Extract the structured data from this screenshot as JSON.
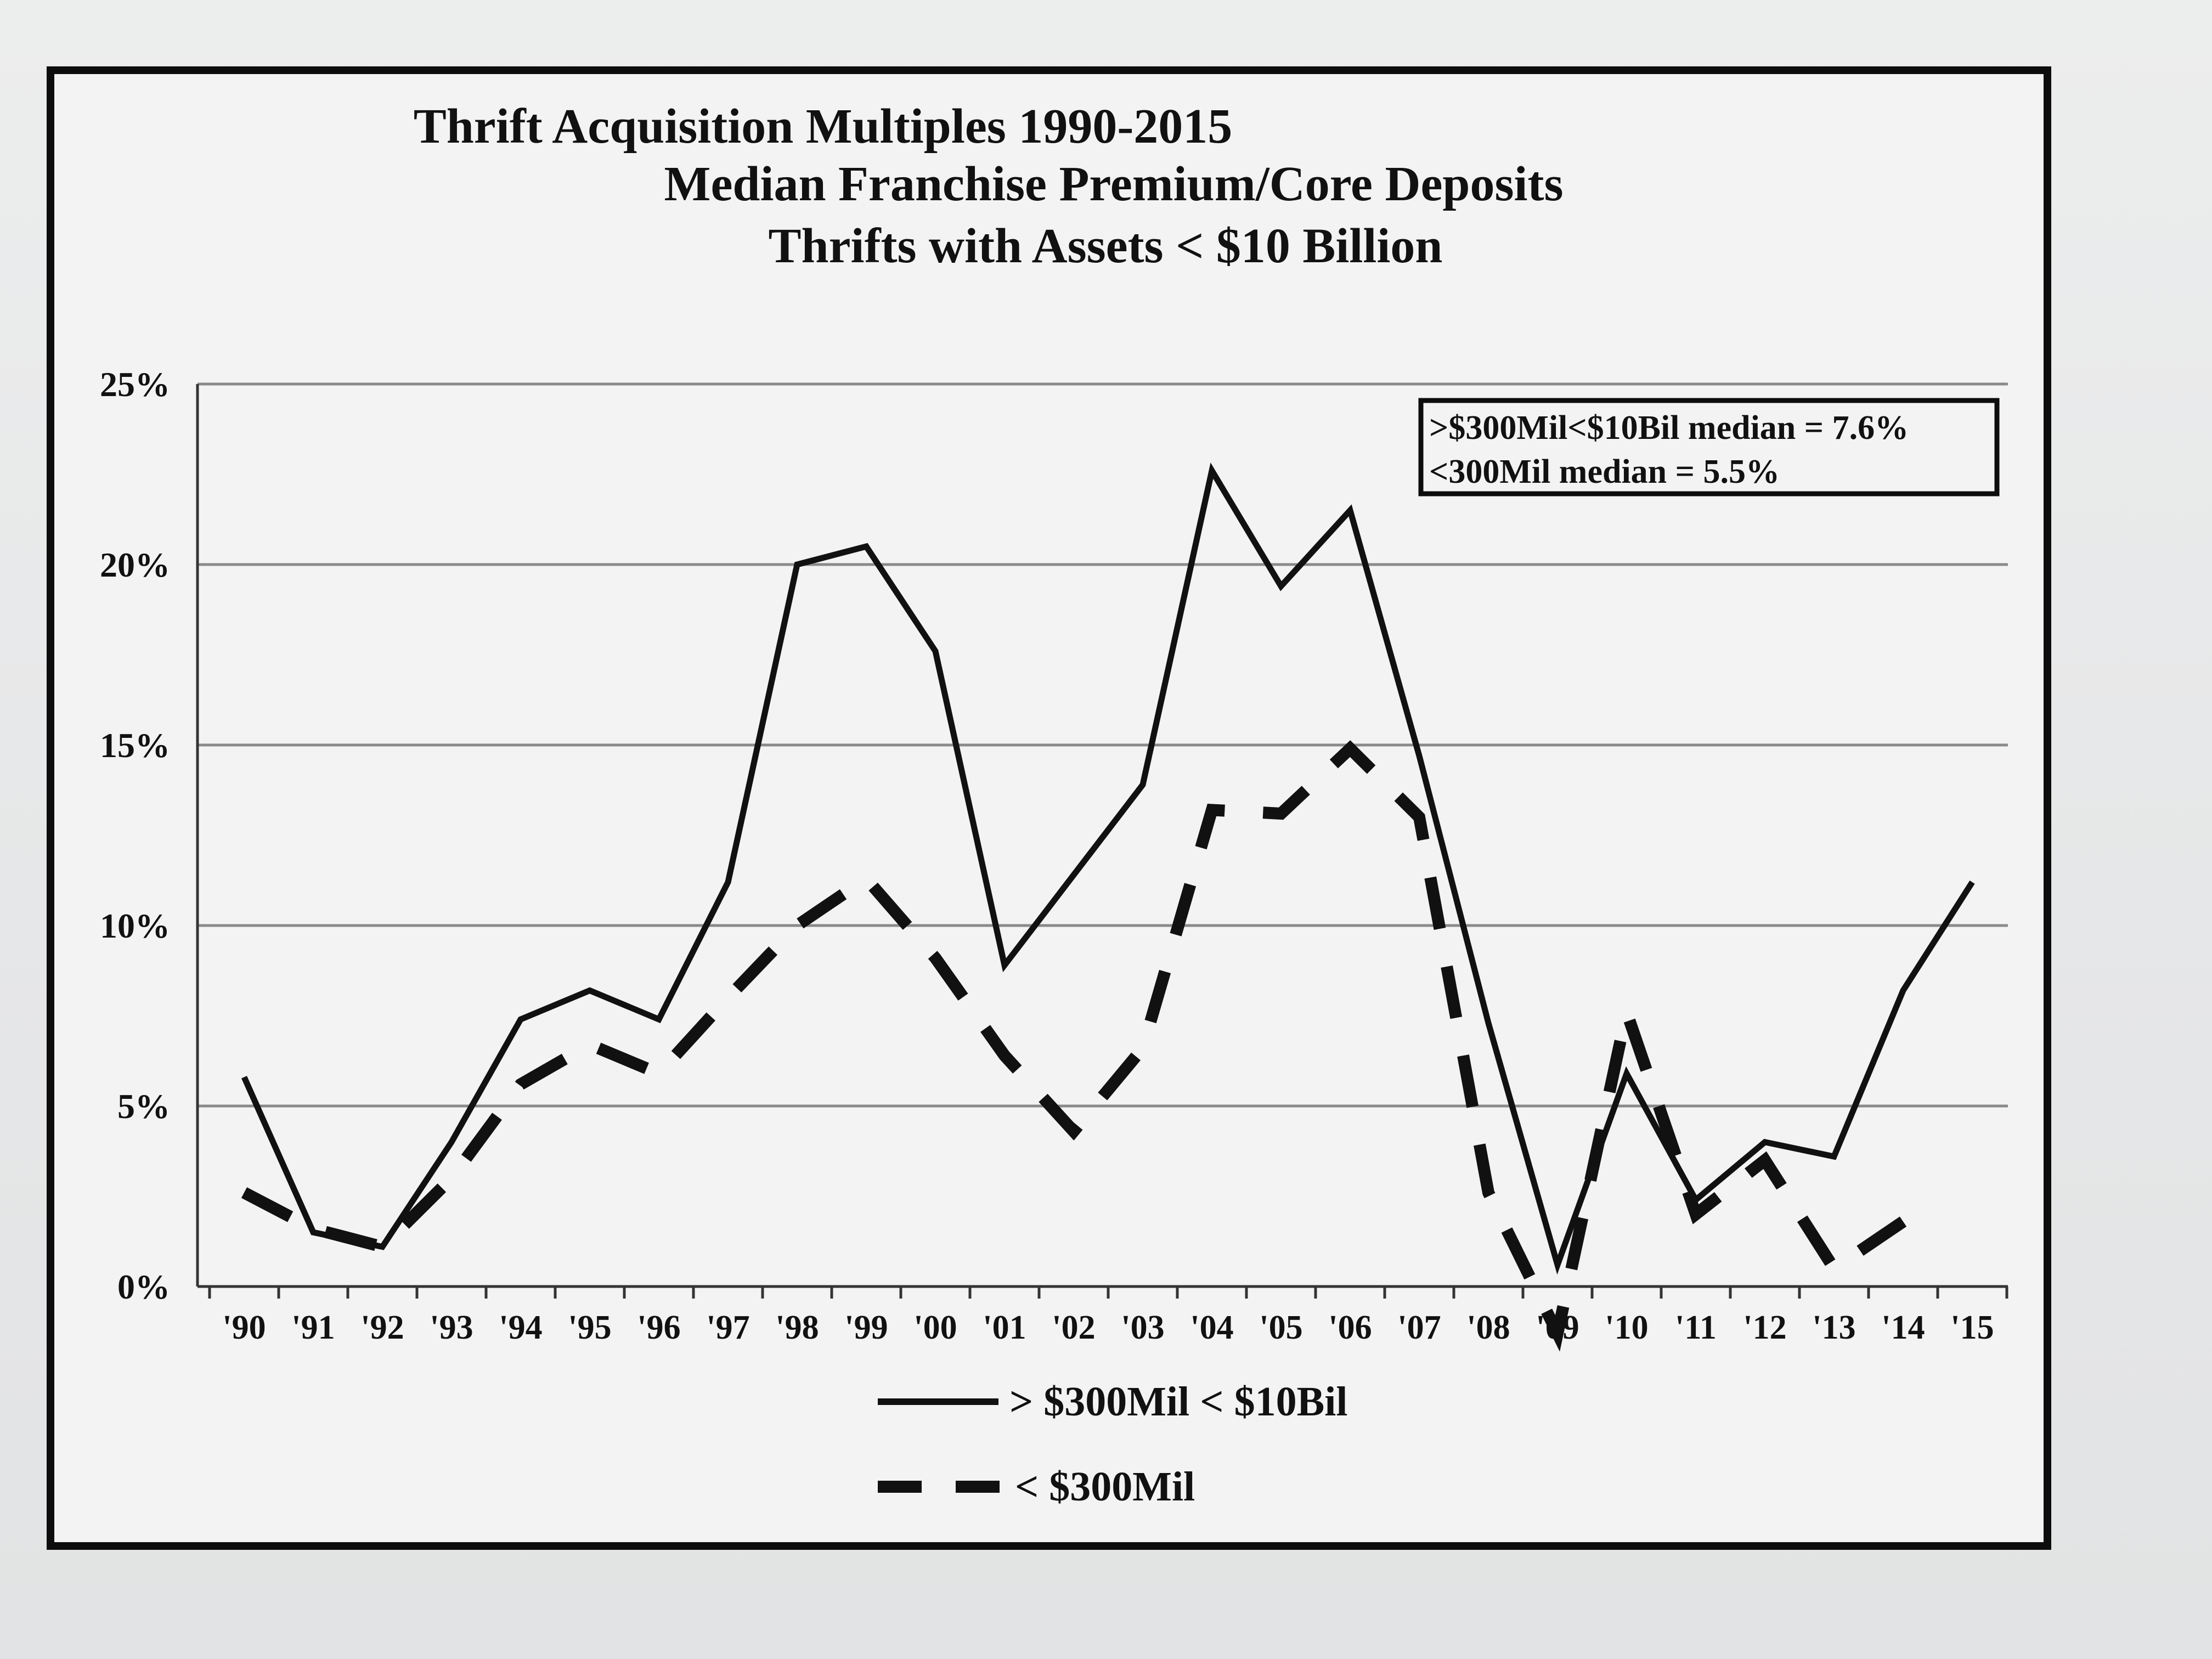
{
  "chart_data": {
    "type": "line",
    "title": "Thrift Acquisition Multiples 1990-2015",
    "subtitle_lines": [
      "Median Franchise Premium/Core Deposits",
      "Thrifts with Assets < $10 Billion"
    ],
    "xlabel": "",
    "ylabel": "",
    "categories": [
      "'90",
      "'91",
      "'92",
      "'93",
      "'94",
      "'95",
      "'96",
      "'97",
      "'98",
      "'99",
      "'00",
      "'01",
      "'02",
      "'03",
      "'04",
      "'05",
      "'06",
      "'07",
      "'08",
      "'09",
      "'10",
      "'11",
      "'12",
      "'13",
      "'14",
      "'15"
    ],
    "yticks": [
      "0%",
      "5%",
      "10%",
      "15%",
      "20%",
      "25%"
    ],
    "ylim": [
      0,
      25
    ],
    "grid": true,
    "legend_position": "bottom",
    "annotation_lines": [
      ">$300Mil<$10Bil median = 7.6%",
      "<300Mil median = 5.5%"
    ],
    "series": [
      {
        "name": "> $300Mil < $10Bil",
        "style": "solid",
        "values": [
          5.8,
          1.5,
          1.1,
          4.0,
          7.4,
          8.2,
          7.4,
          11.2,
          20.0,
          20.5,
          17.6,
          8.9,
          11.4,
          13.9,
          22.6,
          19.4,
          21.5,
          14.7,
          7.3,
          0.6,
          5.9,
          2.4,
          4.0,
          3.6,
          8.2,
          11.2
        ]
      },
      {
        "name": "< $300Mil",
        "style": "dashed",
        "values": [
          2.6,
          1.6,
          1.1,
          3.0,
          5.6,
          6.7,
          5.9,
          8.0,
          10.0,
          11.3,
          9.1,
          6.4,
          4.3,
          6.6,
          13.2,
          13.1,
          14.9,
          13.0,
          2.6,
          -1.3,
          7.6,
          2.0,
          3.5,
          0.5,
          1.8,
          null
        ]
      }
    ]
  }
}
